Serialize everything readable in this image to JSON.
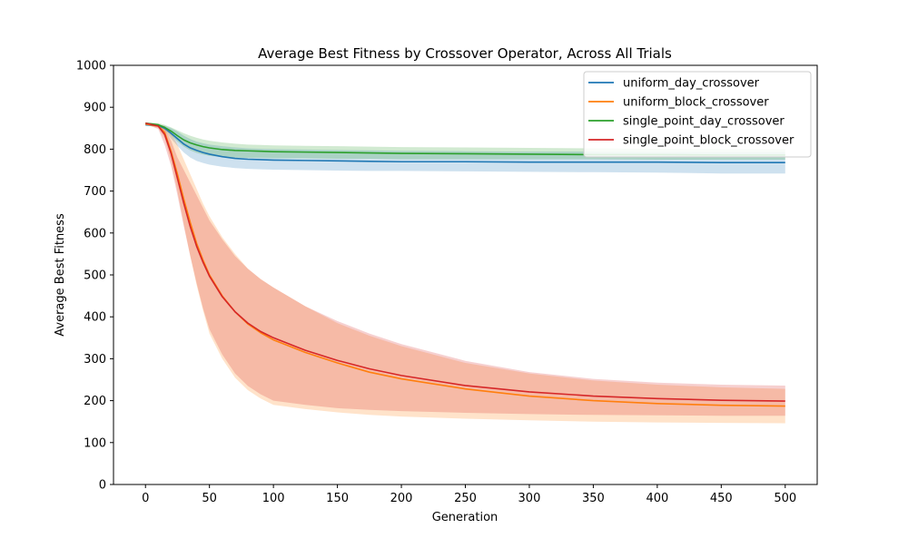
{
  "chart_data": {
    "type": "line",
    "title": "Average Best Fitness by Crossover Operator, Across All Trials",
    "xlabel": "Generation",
    "ylabel": "Average Best Fitness",
    "xlim": [
      -25,
      525
    ],
    "ylim": [
      0,
      1000
    ],
    "xticks": [
      0,
      50,
      100,
      150,
      200,
      250,
      300,
      350,
      400,
      450,
      500
    ],
    "yticks": [
      0,
      100,
      200,
      300,
      400,
      500,
      600,
      700,
      800,
      900,
      1000
    ],
    "grid": false,
    "legend_position": "top-right",
    "x": [
      0,
      10,
      15,
      20,
      25,
      30,
      35,
      40,
      45,
      50,
      60,
      70,
      80,
      90,
      100,
      125,
      150,
      175,
      200,
      250,
      300,
      350,
      400,
      450,
      500
    ],
    "series": [
      {
        "name": "uniform_day_crossover",
        "color": "#1f77b4",
        "values": [
          858,
          856,
          850,
          838,
          825,
          812,
          803,
          797,
          792,
          788,
          782,
          778,
          776,
          775,
          774,
          773,
          772,
          771,
          770,
          770,
          769,
          769,
          769,
          768,
          768
        ],
        "lower": [
          857,
          854,
          845,
          825,
          808,
          792,
          780,
          772,
          767,
          763,
          758,
          755,
          753,
          752,
          751,
          750,
          749,
          748,
          748,
          747,
          746,
          745,
          744,
          742,
          742
        ],
        "upper": [
          860,
          858,
          856,
          850,
          842,
          832,
          824,
          818,
          814,
          811,
          807,
          804,
          802,
          801,
          800,
          799,
          798,
          797,
          796,
          795,
          794,
          794,
          793,
          793,
          793
        ]
      },
      {
        "name": "uniform_block_crossover",
        "color": "#ff7f0e",
        "values": [
          860,
          855,
          840,
          795,
          740,
          680,
          625,
          575,
          535,
          500,
          450,
          412,
          383,
          362,
          345,
          315,
          290,
          268,
          252,
          228,
          211,
          200,
          193,
          189,
          187
        ],
        "lower": [
          858,
          850,
          825,
          770,
          700,
          620,
          545,
          475,
          415,
          360,
          300,
          255,
          225,
          205,
          190,
          180,
          172,
          166,
          162,
          157,
          153,
          150,
          148,
          147,
          146
        ],
        "upper": [
          862,
          860,
          855,
          840,
          810,
          775,
          740,
          705,
          670,
          640,
          590,
          550,
          515,
          490,
          470,
          425,
          385,
          355,
          330,
          290,
          265,
          248,
          238,
          232,
          228
        ]
      },
      {
        "name": "single_point_day_crossover",
        "color": "#2ca02c",
        "values": [
          862,
          858,
          852,
          843,
          832,
          822,
          815,
          810,
          806,
          803,
          799,
          797,
          796,
          795,
          794,
          793,
          792,
          791,
          790,
          789,
          788,
          787,
          787,
          786,
          786
        ],
        "lower": [
          860,
          855,
          846,
          833,
          818,
          806,
          797,
          791,
          787,
          784,
          781,
          780,
          779,
          779,
          778,
          778,
          777,
          777,
          776,
          776,
          776,
          776,
          775,
          775,
          775
        ],
        "upper": [
          864,
          862,
          858,
          852,
          845,
          838,
          832,
          827,
          823,
          820,
          816,
          813,
          811,
          810,
          809,
          808,
          807,
          806,
          805,
          804,
          803,
          802,
          801,
          800,
          800
        ]
      },
      {
        "name": "single_point_block_crossover",
        "color": "#d62728",
        "values": [
          862,
          855,
          835,
          790,
          730,
          670,
          615,
          568,
          530,
          497,
          448,
          412,
          385,
          365,
          350,
          320,
          296,
          276,
          260,
          236,
          221,
          211,
          205,
          201,
          199
        ],
        "lower": [
          860,
          848,
          810,
          760,
          690,
          615,
          545,
          480,
          420,
          370,
          310,
          265,
          235,
          215,
          200,
          190,
          182,
          178,
          175,
          171,
          168,
          166,
          165,
          164,
          164
        ],
        "upper": [
          864,
          860,
          850,
          820,
          780,
          750,
          720,
          690,
          660,
          630,
          585,
          545,
          515,
          490,
          470,
          425,
          390,
          360,
          335,
          295,
          268,
          252,
          243,
          238,
          236
        ]
      }
    ]
  }
}
